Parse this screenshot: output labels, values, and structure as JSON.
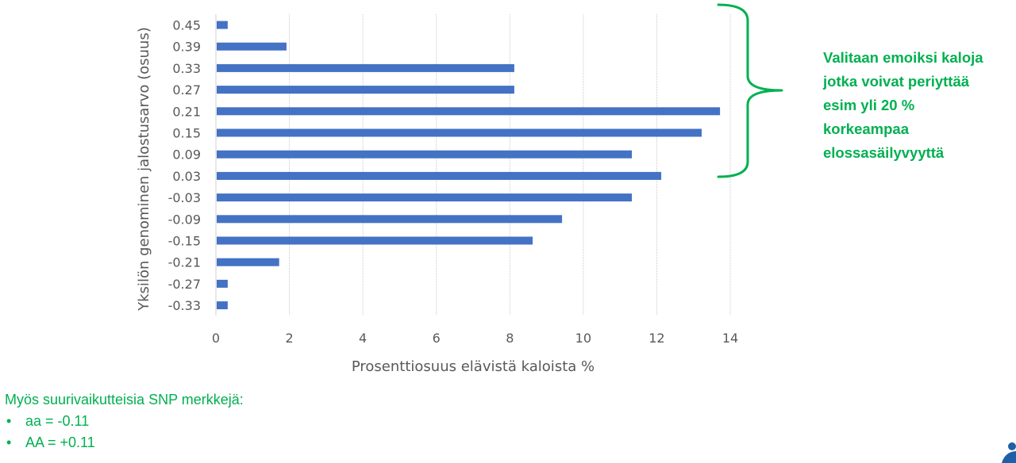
{
  "chart_data": {
    "type": "bar",
    "orientation": "horizontal",
    "title": "",
    "xlabel": "Prosenttiosuus elävistä kaloista %",
    "ylabel": "Yksilön genominen jalostusarvo (osuus)",
    "categories": [
      "0.45",
      "0.39",
      "0.33",
      "0.27",
      "0.21",
      "0.15",
      "0.09",
      "0.03",
      "-0.03",
      "-0.09",
      "-0.15",
      "-0.21",
      "-0.27",
      "-0.33"
    ],
    "values": [
      0.3,
      1.9,
      8.1,
      8.1,
      13.7,
      13.2,
      11.3,
      12.1,
      11.3,
      9.4,
      8.6,
      1.7,
      0.3,
      0.3
    ],
    "xlim": [
      0,
      14
    ],
    "xticks": [
      "0",
      "2",
      "4",
      "6",
      "8",
      "10",
      "12",
      "14"
    ],
    "grid": "vertical",
    "legend": "none",
    "bar_color": "#4472c4"
  },
  "annotation": {
    "lines": [
      "Valitaan emoiksi kaloja",
      "jotka voivat periyttää",
      "esim yli 20 %",
      "korkeampaa",
      "elossasäilyvyyttä"
    ],
    "color": "#00b050",
    "brace_color": "#00b050"
  },
  "notes": {
    "heading": "Myös suurivaikutteisia SNP merkkejä:",
    "items": [
      {
        "bullet": "•",
        "text": "aa = -0.11"
      },
      {
        "bullet": "•",
        "text": "AA = +0.11"
      }
    ],
    "color": "#00b050"
  },
  "logo": {
    "icon": "organization-logo-icon",
    "color": "#1f5ea8"
  }
}
